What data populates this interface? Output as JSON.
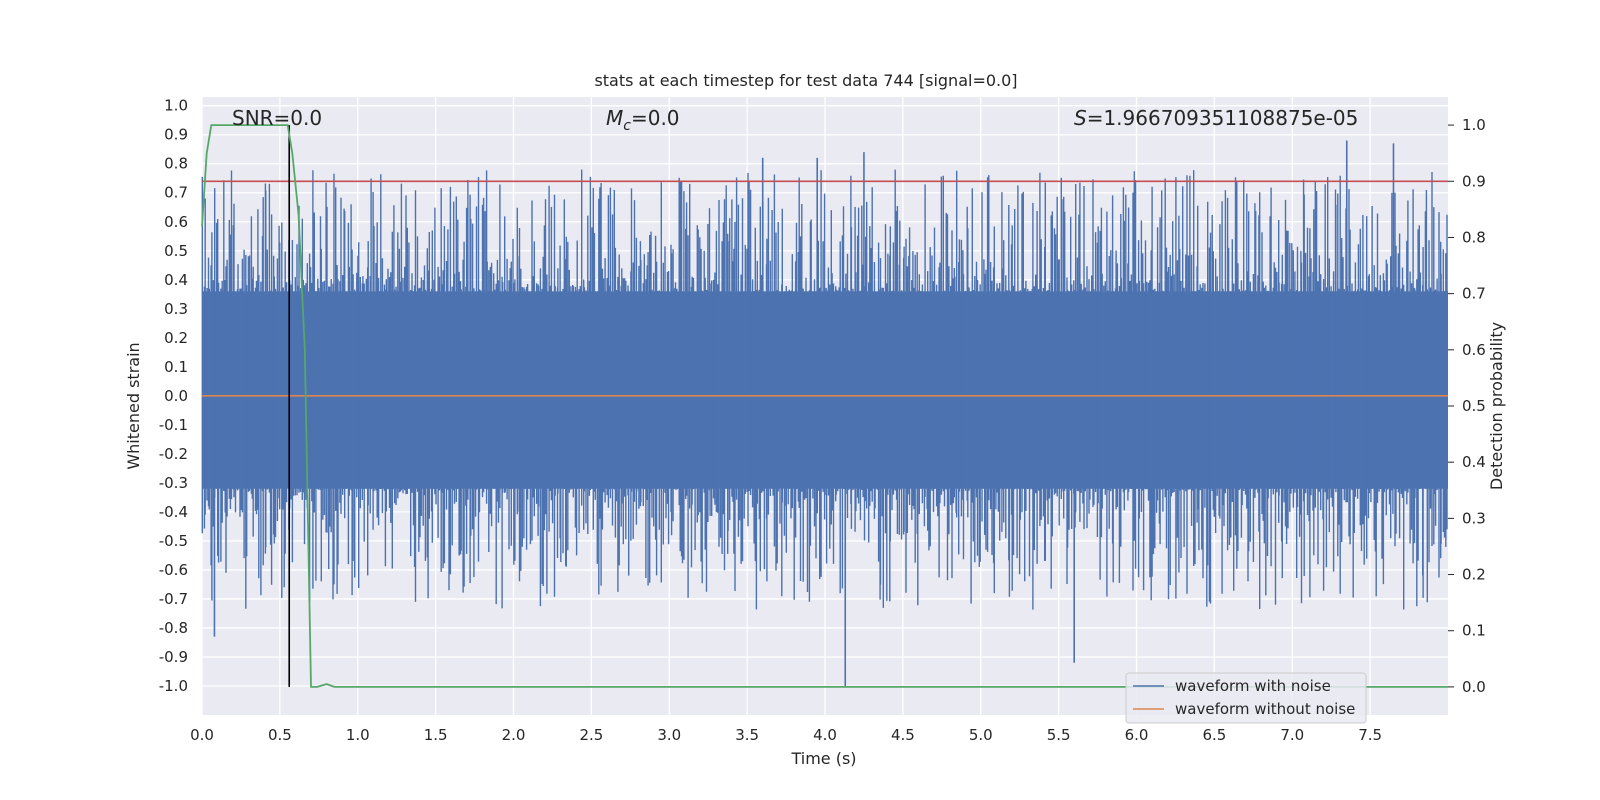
{
  "chart_data": {
    "type": "line",
    "title": "stats at each timestep for test data 744 [signal=0.0]",
    "xlabel": "Time (s)",
    "ylabel": "Whitened strain",
    "y2label": "Detection probability",
    "xlim": [
      0.0,
      8.0
    ],
    "ylim": [
      -1.1,
      1.03
    ],
    "y2lim": [
      -0.05,
      1.05
    ],
    "x_ticks": [
      "0.0",
      "0.5",
      "1.0",
      "1.5",
      "2.0",
      "2.5",
      "3.0",
      "3.5",
      "4.0",
      "4.5",
      "5.0",
      "5.5",
      "6.0",
      "6.5",
      "7.0",
      "7.5"
    ],
    "y_ticks": [
      "1.0",
      "0.9",
      "0.8",
      "0.7",
      "0.6",
      "0.5",
      "0.4",
      "0.3",
      "0.2",
      "0.1",
      "0.0",
      "-0.1",
      "-0.2",
      "-0.3",
      "-0.4",
      "-0.5",
      "-0.6",
      "-0.7",
      "-0.8",
      "-0.9",
      "-1.0"
    ],
    "y2_ticks": [
      "1.0",
      "0.9",
      "0.8",
      "0.7",
      "0.6",
      "0.5",
      "0.4",
      "0.3",
      "0.2",
      "0.1",
      "0.0"
    ],
    "annotations": {
      "snr": "SNR=0.0",
      "mc_symbol": "M",
      "mc_sub": "c",
      "mc_value": "=0.0",
      "s_symbol": "S",
      "s_value": "=1.966709351108875e-05"
    },
    "threshold": {
      "y2": 0.9,
      "color": "#c44e52"
    },
    "marker_time": 0.56,
    "series": [
      {
        "name": "waveform with noise",
        "axis": "left",
        "color": "#4c72b0",
        "style": "noise",
        "core_range": [
          -0.32,
          0.36
        ],
        "extreme_spikes": [
          {
            "x": 0.08,
            "y": -0.83
          },
          {
            "x": 3.6,
            "y": 0.82
          },
          {
            "x": 3.95,
            "y": 0.82
          },
          {
            "x": 4.13,
            "y": -1.0
          },
          {
            "x": 4.25,
            "y": 0.84
          },
          {
            "x": 5.6,
            "y": -0.92
          },
          {
            "x": 7.35,
            "y": 0.88
          },
          {
            "x": 7.65,
            "y": 0.87
          }
        ]
      },
      {
        "name": "waveform without noise",
        "axis": "left",
        "color": "#dd8452",
        "x": [
          0.0,
          8.0
        ],
        "y": [
          0.0,
          0.0
        ]
      },
      {
        "name": "",
        "axis": "right",
        "color": "#55a868",
        "x": [
          0.0,
          0.03,
          0.06,
          0.1,
          0.2,
          0.3,
          0.4,
          0.5,
          0.55,
          0.58,
          0.62,
          0.66,
          0.7,
          0.74,
          0.8,
          0.85,
          0.9,
          1.0,
          2.0,
          4.0,
          6.0,
          8.0
        ],
        "y": [
          0.82,
          0.95,
          1.0,
          1.0,
          1.0,
          1.0,
          1.0,
          1.0,
          1.0,
          0.95,
          0.84,
          0.6,
          0.0,
          0.0,
          0.005,
          0.0,
          0.0,
          0.0,
          0.0,
          0.0,
          0.0,
          0.0
        ]
      }
    ],
    "legend": {
      "position": "lower-right",
      "entries": [
        {
          "label": "waveform with noise",
          "color": "#4c72b0"
        },
        {
          "label": "waveform without noise",
          "color": "#dd8452"
        }
      ]
    },
    "grid": true,
    "background": "#eaeaf2"
  }
}
